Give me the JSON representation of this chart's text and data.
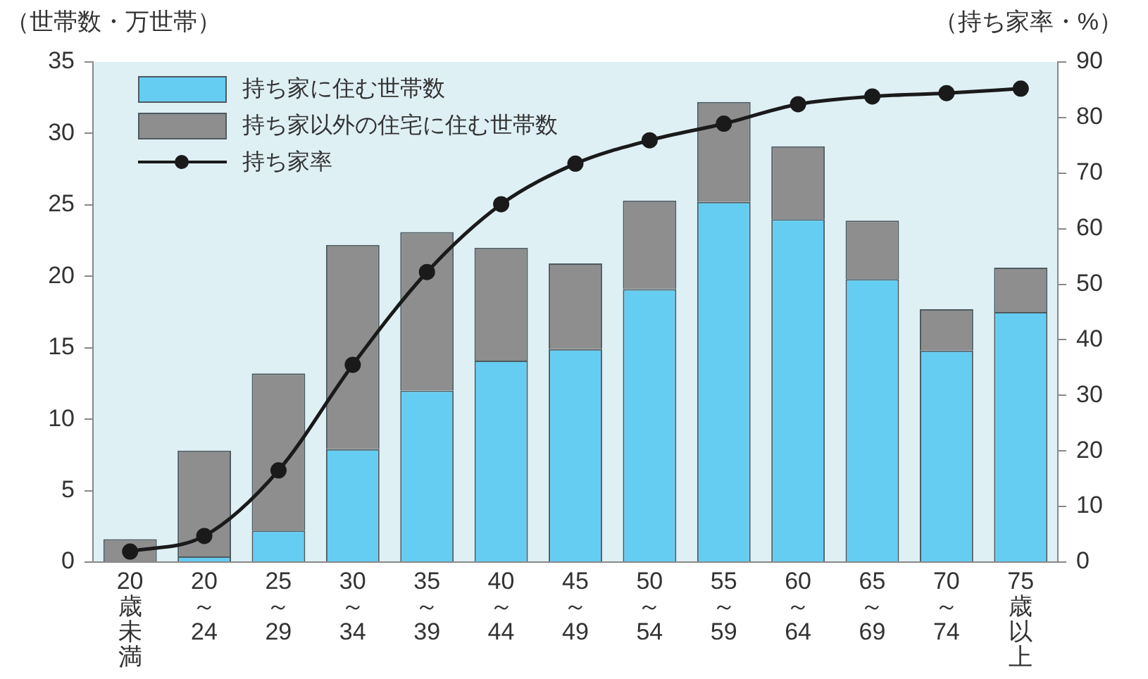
{
  "chart_data": {
    "type": "bar",
    "categories": [
      "20歳未満",
      "20～24",
      "25～29",
      "30～34",
      "35～39",
      "40～44",
      "45～49",
      "50～54",
      "55～59",
      "60～64",
      "65～69",
      "70～74",
      "75歳以上"
    ],
    "series": [
      {
        "name": "持ち家に住む世帯数",
        "color": "#66cdf2",
        "values": [
          0,
          0.4,
          2.2,
          7.9,
          12.0,
          14.1,
          14.9,
          19.1,
          25.2,
          24.0,
          19.8,
          14.8,
          17.5
        ]
      },
      {
        "name": "持ち家以外の住宅に住む世帯数",
        "color": "#8e8e8e",
        "values": [
          1.6,
          7.4,
          11.0,
          14.3,
          11.1,
          7.9,
          6.0,
          6.2,
          7.0,
          5.1,
          4.1,
          2.9,
          3.1
        ]
      },
      {
        "name": "持ち家率",
        "type": "line",
        "axis": "y2",
        "color": "#1a1a1a",
        "values": [
          1.9,
          4.7,
          16.5,
          35.5,
          52.2,
          64.4,
          71.7,
          75.9,
          78.9,
          82.4,
          83.8,
          84.4,
          85.2
        ]
      }
    ],
    "stacked": true,
    "ylabel": "（世帯数・万世帯）",
    "y2label": "（持ち家率・%）",
    "ylim": [
      0,
      35
    ],
    "yticks": [
      0,
      5,
      10,
      15,
      20,
      25,
      30,
      35
    ],
    "y2lim": [
      0,
      90
    ],
    "y2ticks": [
      0,
      10,
      20,
      30,
      40,
      50,
      60,
      70,
      80,
      90
    ],
    "grid": false,
    "legend": "top left",
    "marker": "circle",
    "line_style": "solid"
  }
}
